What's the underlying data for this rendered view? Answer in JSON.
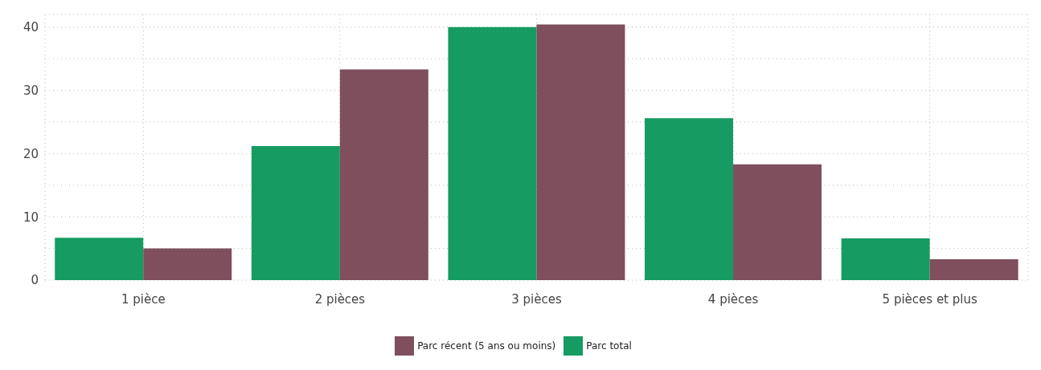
{
  "chart_data": {
    "type": "bar",
    "categories": [
      "1 pièce",
      "2 pièces",
      "3 pièces",
      "4 pièces",
      "5 pièces et plus"
    ],
    "series": [
      {
        "name": "Parc total",
        "color": "#169b62",
        "values": [
          6.7,
          21.2,
          40.0,
          25.6,
          6.6
        ]
      },
      {
        "name": "Parc récent (5 ans ou moins)",
        "color": "#7f4f5d",
        "values": [
          5.0,
          33.3,
          40.4,
          18.3,
          3.3
        ]
      }
    ],
    "ylim": [
      0,
      42
    ],
    "yticks": [
      0,
      {
        "value": 5,
        "label": null
      },
      10,
      {
        "value": 15,
        "label": null
      },
      20,
      {
        "value": 25,
        "label": null
      },
      30,
      {
        "value": 35,
        "label": null
      },
      40
    ],
    "grid": true,
    "legend": "bottom"
  }
}
